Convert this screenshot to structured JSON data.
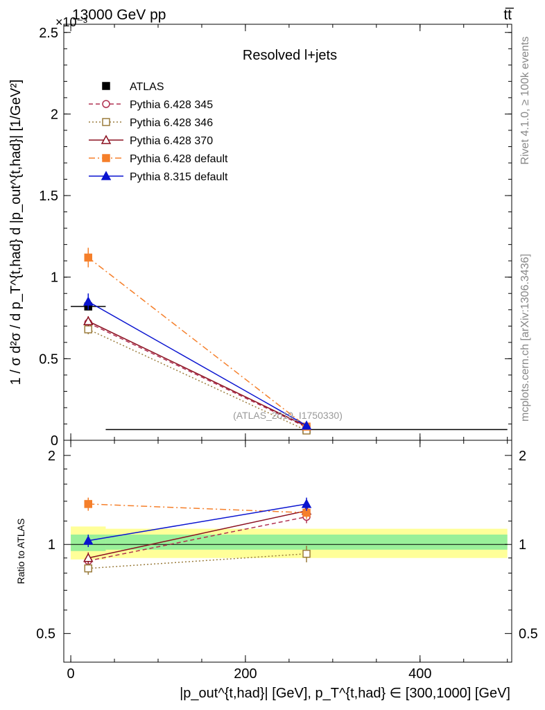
{
  "header": {
    "energy_label": "13000 GeV pp",
    "process_label": "tt̅",
    "exponent_label": "×10⁻³",
    "analysis_title": "Resolved l+jets",
    "watermark": "(ATLAS_2019_I1750330)",
    "side_text_rivet": "Rivet 4.1.0, ≥ 100k events",
    "side_text_site": "mcplots.cern.ch [arXiv:1306.3436]"
  },
  "axes": {
    "main_ylabel": "1 / σ d²σ / d p_T^{t,had} d |p_out^{t,had}| [1/GeV²]",
    "ratio_ylabel": "Ratio to ATLAS",
    "xlabel": "|p_out^{t,had}| [GeV], p_T^{t,had} ∈ [300,1000] [GeV]",
    "x_ticks": [
      {
        "value": 0,
        "label": "0"
      },
      {
        "value": 200,
        "label": "200"
      },
      {
        "value": 400,
        "label": "400"
      }
    ],
    "main_y_ticks": [
      {
        "value": 0,
        "label": "0"
      },
      {
        "value": 0.5,
        "label": "0.5"
      },
      {
        "value": 1,
        "label": "1"
      },
      {
        "value": 1.5,
        "label": "1.5"
      },
      {
        "value": 2,
        "label": "2"
      },
      {
        "value": 2.5,
        "label": "2.5"
      }
    ],
    "ratio_y_ticks": [
      {
        "value": 0.5,
        "label": "0.5"
      },
      {
        "value": 1,
        "label": "1"
      },
      {
        "value": 2,
        "label": "2"
      }
    ]
  },
  "chart_data": [
    {
      "type": "line",
      "panel": "main",
      "title": "Resolved l+jets",
      "xlabel": "|p_out^{t,had}| [GeV], p_T^{t,had} ∈ [300,1000] [GeV]",
      "ylabel": "1 / σ d²σ / d p_T d |p_out| [1/GeV²] (×10⁻³)",
      "xlim": [
        -8,
        505
      ],
      "ylim": [
        0,
        2.55
      ],
      "legend_position": "top-left",
      "series": [
        {
          "name": "ATLAS",
          "color": "#000000",
          "style": "data",
          "marker": "square",
          "x": [
            20,
            270
          ],
          "y": [
            0.82,
            0.066
          ],
          "xerr": [
            [
              20,
              20
            ],
            [
              230,
              230
            ]
          ]
        },
        {
          "name": "Pythia 6.428 345",
          "color": "#b03050",
          "style": "dashed",
          "marker": "open-circle",
          "x": [
            20,
            270
          ],
          "y": [
            0.72,
            0.08
          ],
          "yerr": [
            0.03,
            0.004
          ]
        },
        {
          "name": "Pythia 6.428 346",
          "color": "#9a7c3c",
          "style": "dotted",
          "marker": "open-square",
          "x": [
            20,
            270
          ],
          "y": [
            0.68,
            0.06
          ],
          "yerr": [
            0.03,
            0.004
          ]
        },
        {
          "name": "Pythia 6.428 370",
          "color": "#8b1020",
          "style": "solid",
          "marker": "open-triangle",
          "x": [
            20,
            270
          ],
          "y": [
            0.73,
            0.086
          ],
          "yerr": [
            0.03,
            0.004
          ]
        },
        {
          "name": "Pythia 6.428 default",
          "color": "#f57f2a",
          "style": "dashdot",
          "marker": "square",
          "x": [
            20,
            270
          ],
          "y": [
            1.12,
            0.084
          ],
          "yerr": [
            0.06,
            0.004
          ]
        },
        {
          "name": "Pythia 8.315 default",
          "color": "#0a14d0",
          "style": "solid",
          "marker": "triangle",
          "x": [
            20,
            270
          ],
          "y": [
            0.85,
            0.09
          ],
          "yerr": [
            0.05,
            0.004
          ]
        }
      ]
    },
    {
      "type": "line",
      "panel": "ratio",
      "ylabel": "Ratio to ATLAS",
      "xlim": [
        -8,
        505
      ],
      "ylim": [
        0.4,
        2.25
      ],
      "scale": "log",
      "bands": [
        {
          "name": "total uncertainty",
          "color": "#ffff99",
          "segments": [
            [
              0,
              40,
              0.89,
              1.15
            ],
            [
              40,
              500,
              0.9,
              1.13
            ]
          ]
        },
        {
          "name": "statistical uncertainty",
          "color": "#99f099",
          "segments": [
            [
              0,
              40,
              0.95,
              1.08
            ],
            [
              40,
              500,
              0.96,
              1.08
            ]
          ]
        }
      ],
      "series": [
        {
          "name": "Pythia 6.428 345",
          "color": "#b03050",
          "style": "dashed",
          "marker": "open-circle",
          "x": [
            20,
            270
          ],
          "y": [
            0.88,
            1.24
          ],
          "yerr": [
            0.04,
            0.06
          ]
        },
        {
          "name": "Pythia 6.428 346",
          "color": "#9a7c3c",
          "style": "dotted",
          "marker": "open-square",
          "x": [
            20,
            270
          ],
          "y": [
            0.83,
            0.93
          ],
          "yerr": [
            0.04,
            0.06
          ]
        },
        {
          "name": "Pythia 6.428 370",
          "color": "#8b1020",
          "style": "solid",
          "marker": "open-triangle",
          "x": [
            20,
            270
          ],
          "y": [
            0.9,
            1.3
          ],
          "yerr": [
            0.04,
            0.06
          ]
        },
        {
          "name": "Pythia 6.428 default",
          "color": "#f57f2a",
          "style": "dashdot",
          "marker": "square",
          "x": [
            20,
            270
          ],
          "y": [
            1.37,
            1.28
          ],
          "yerr": [
            0.07,
            0.06
          ]
        },
        {
          "name": "Pythia 8.315 default",
          "color": "#0a14d0",
          "style": "solid",
          "marker": "triangle",
          "x": [
            20,
            270
          ],
          "y": [
            1.03,
            1.37
          ],
          "yerr": [
            0.05,
            0.07
          ]
        }
      ]
    }
  ]
}
